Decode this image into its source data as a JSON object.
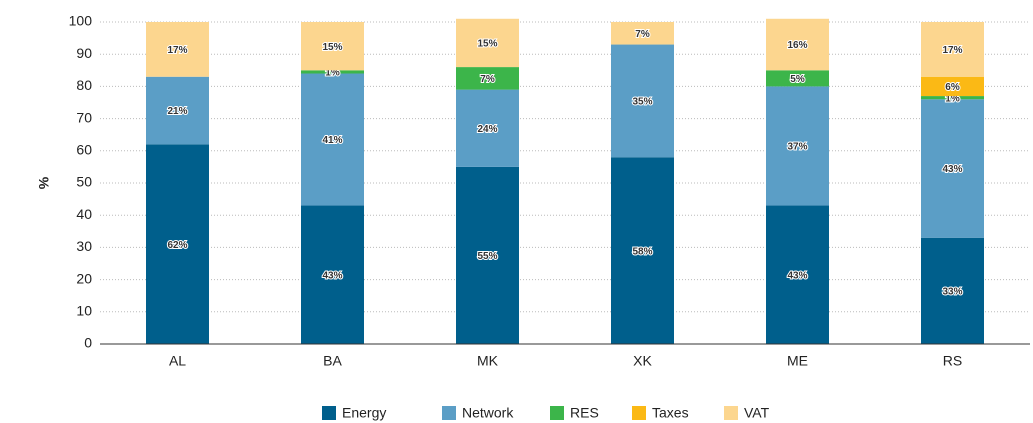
{
  "chart_data": {
    "type": "stacked_bar",
    "y_label": "%",
    "categories": [
      "AL",
      "BA",
      "MK",
      "XK",
      "ME",
      "RS"
    ],
    "series": [
      {
        "name": "Energy",
        "color": "#005f8c",
        "values": [
          62,
          43,
          55,
          58,
          43,
          33
        ],
        "value_labels": [
          "62%",
          "43%",
          "55%",
          "58%",
          "43%",
          "33%"
        ]
      },
      {
        "name": "Network",
        "color": "#5b9ec6",
        "values": [
          21,
          41,
          24,
          35,
          37,
          43
        ],
        "value_labels": [
          "21%",
          "41%",
          "24%",
          "35%",
          "37%",
          "43%"
        ]
      },
      {
        "name": "RES",
        "color": "#3cb54a",
        "values": [
          null,
          1,
          7,
          null,
          5,
          1
        ],
        "value_labels": [
          null,
          "1%",
          "7%",
          null,
          "5%",
          "1%"
        ]
      },
      {
        "name": "Taxes",
        "color": "#fbb915",
        "values": [
          null,
          null,
          null,
          null,
          null,
          6
        ],
        "value_labels": [
          null,
          null,
          null,
          null,
          null,
          "6%"
        ]
      },
      {
        "name": "VAT",
        "color": "#fcd68f",
        "values": [
          17,
          15,
          15,
          7,
          16,
          17
        ],
        "value_labels": [
          "17%",
          "15%",
          "15%",
          "7%",
          "16%",
          "17%"
        ]
      }
    ],
    "ylim": [
      0,
      100
    ],
    "yticks": [
      0,
      10,
      20,
      30,
      40,
      50,
      60,
      70,
      80,
      90,
      100
    ],
    "grid": true,
    "legend": "bottom"
  }
}
